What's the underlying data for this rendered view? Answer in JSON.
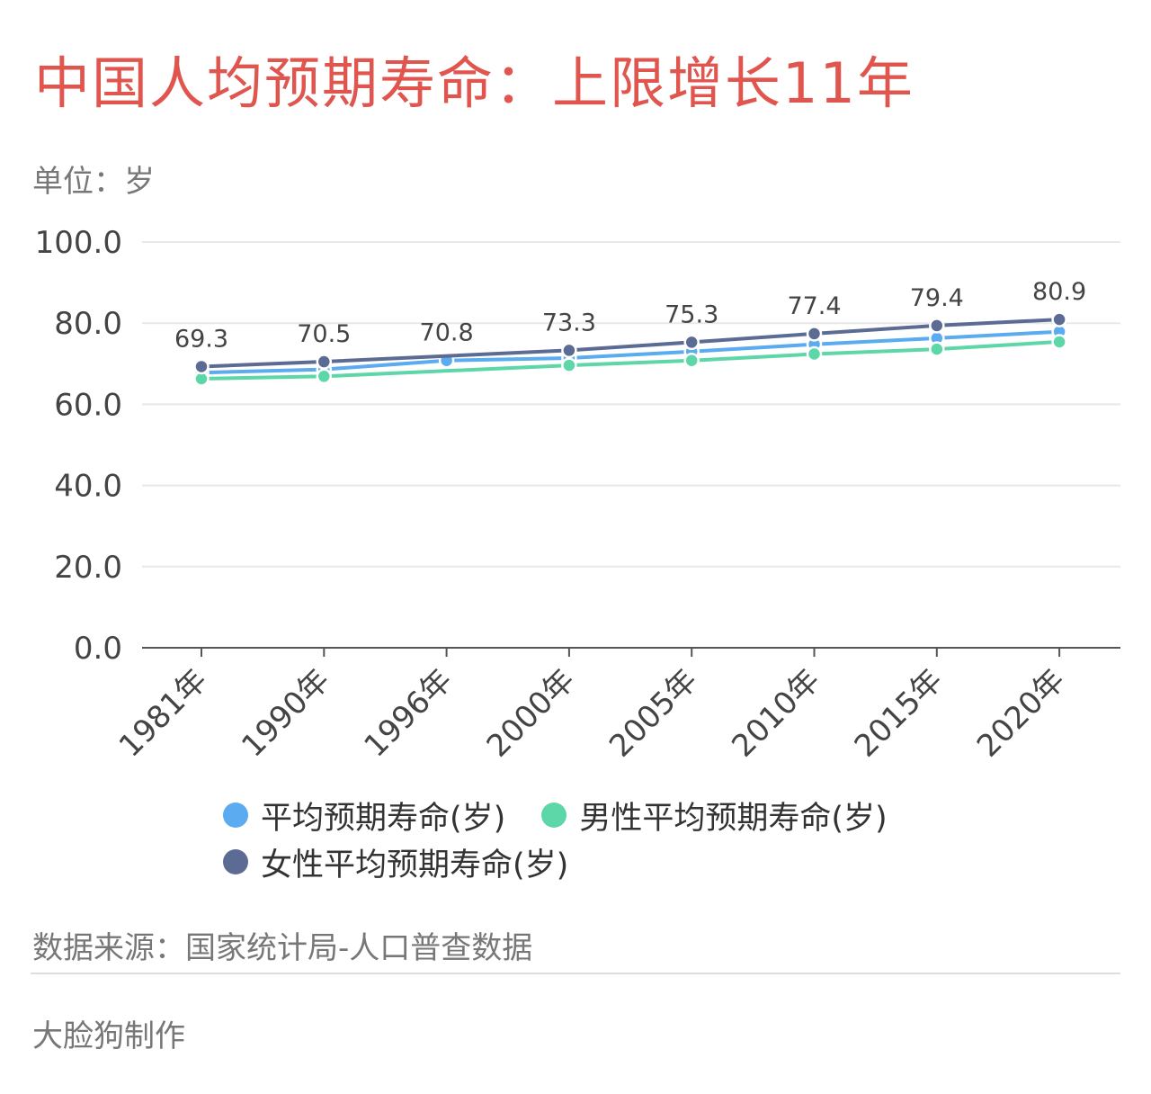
{
  "title": "中国人均预期寿命：上限增长11年",
  "unit_label": "单位：岁",
  "source": "数据来源：国家统计局-人口普查数据",
  "credit": "大脸狗制作",
  "colors": {
    "title": "#e0564f",
    "avg": "#5aabef",
    "male": "#5dd6a8",
    "female": "#5c6b94",
    "grid": "#e8e8e8",
    "axis": "#555555"
  },
  "chart_data": {
    "type": "line",
    "categories": [
      "1981年",
      "1990年",
      "1996年",
      "2000年",
      "2005年",
      "2010年",
      "2015年",
      "2020年"
    ],
    "ylim": [
      0,
      100
    ],
    "yticks": [
      "0.0",
      "20.0",
      "40.0",
      "60.0",
      "80.0",
      "100.0"
    ],
    "ytick_values": [
      0,
      20,
      40,
      60,
      80,
      100
    ],
    "grid": true,
    "legend_position": "bottom",
    "series": [
      {
        "key": "avg",
        "name": "平均预期寿命(岁)",
        "color": "#5aabef",
        "values": [
          67.8,
          68.6,
          70.8,
          71.4,
          73.0,
          74.8,
          76.3,
          77.9
        ],
        "labels": [
          "",
          "",
          "70.8",
          "",
          "",
          "",
          "",
          ""
        ]
      },
      {
        "key": "male",
        "name": "男性平均预期寿命(岁)",
        "color": "#5dd6a8",
        "values": [
          66.3,
          66.9,
          null,
          69.6,
          70.8,
          72.4,
          73.6,
          75.4
        ],
        "labels": [
          "",
          "",
          "",
          "",
          "",
          "",
          "",
          ""
        ]
      },
      {
        "key": "female",
        "name": "女性平均预期寿命(岁)",
        "color": "#5c6b94",
        "values": [
          69.3,
          70.5,
          null,
          73.3,
          75.3,
          77.4,
          79.4,
          80.9
        ],
        "labels": [
          "69.3",
          "70.5",
          "",
          "73.3",
          "75.3",
          "77.4",
          "79.4",
          "80.9"
        ]
      }
    ]
  }
}
